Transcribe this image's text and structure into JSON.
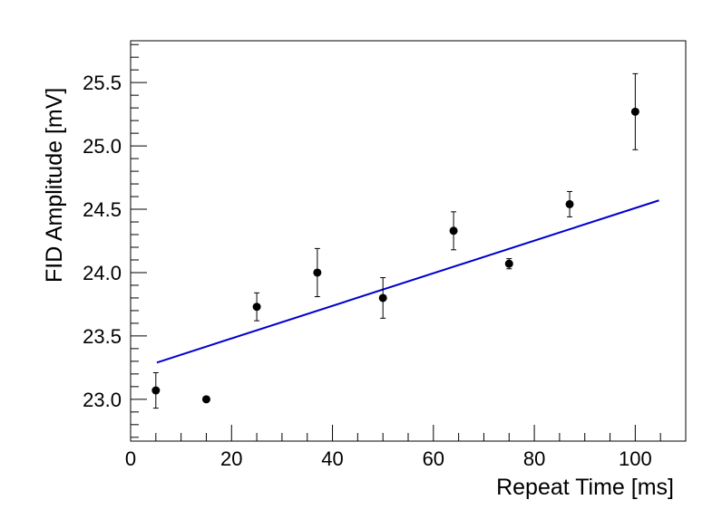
{
  "chart_data": {
    "type": "scatter",
    "xlabel": "Repeat Time [ms]",
    "ylabel": "FID Amplitude [mV]",
    "xlim": [
      0,
      110
    ],
    "ylim": [
      22.67,
      25.83
    ],
    "x_ticks": [
      0,
      20,
      40,
      60,
      80,
      100
    ],
    "x_tick_labels": [
      "0",
      "20",
      "40",
      "60",
      "80",
      "100"
    ],
    "y_ticks": [
      23.0,
      23.5,
      24.0,
      24.5,
      25.0,
      25.5
    ],
    "y_tick_labels": [
      "23.0",
      "23.5",
      "24.0",
      "24.5",
      "25.0",
      "25.5"
    ],
    "grid": false,
    "series": [
      {
        "type": "scatter",
        "color": "#000000",
        "points": [
          {
            "x": 5,
            "y": 23.07,
            "err": 0.14
          },
          {
            "x": 15,
            "y": 23.0,
            "err": 0.0
          },
          {
            "x": 25,
            "y": 23.73,
            "err": 0.11
          },
          {
            "x": 37,
            "y": 24.0,
            "err": 0.19
          },
          {
            "x": 50,
            "y": 23.8,
            "err": 0.16
          },
          {
            "x": 64,
            "y": 24.33,
            "err": 0.15
          },
          {
            "x": 75,
            "y": 24.07,
            "err": 0.04
          },
          {
            "x": 87,
            "y": 24.54,
            "err": 0.1
          },
          {
            "x": 100,
            "y": 25.27,
            "err": 0.3
          }
        ]
      },
      {
        "type": "line",
        "color": "#0000cc",
        "x": [
          5.2,
          104.7
        ],
        "y": [
          23.29,
          24.57
        ]
      }
    ]
  }
}
